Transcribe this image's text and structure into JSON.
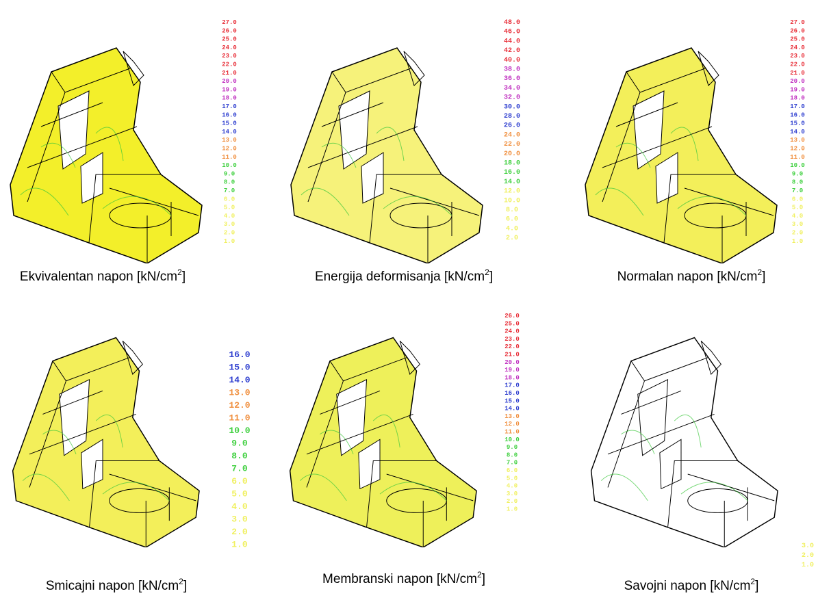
{
  "panels": [
    {
      "caption": {
        "text": "Ekvivalentan napon [kN/cm",
        "sup": "2",
        "close": "]"
      },
      "legend": [
        {
          "color": "#e8303a",
          "labels": [
            "27.0",
            "26.0",
            "25.0",
            "24.0",
            "23.0",
            "22.0",
            "21.0"
          ]
        },
        {
          "color": "#c030c0",
          "labels": [
            "20.0",
            "19.0",
            "18.0"
          ]
        },
        {
          "color": "#3040d0",
          "labels": [
            "17.0",
            "16.0",
            "15.0",
            "14.0"
          ]
        },
        {
          "color": "#f09040",
          "labels": [
            "13.0",
            "12.0",
            "11.0"
          ]
        },
        {
          "color": "#40d040",
          "labels": [
            "10.0",
            "9.0",
            "8.0",
            "7.0"
          ]
        },
        {
          "color": "#f0f060",
          "labels": [
            "6.0",
            "5.0",
            "4.0",
            "3.0",
            "2.0",
            "1.0"
          ]
        }
      ]
    },
    {
      "caption": {
        "text": "Energija deformisanja [kN/cm",
        "sup": "2",
        "close": "]"
      },
      "legend": [
        {
          "color": "#e8303a",
          "labels": [
            "48.0",
            "46.0",
            "44.0",
            "42.0",
            "40.0"
          ]
        },
        {
          "color": "#c030c0",
          "labels": [
            "38.0",
            "36.0",
            "34.0",
            "32.0"
          ]
        },
        {
          "color": "#3040d0",
          "labels": [
            "30.0",
            "28.0",
            "26.0"
          ]
        },
        {
          "color": "#f09040",
          "labels": [
            "24.0",
            "22.0",
            "20.0"
          ]
        },
        {
          "color": "#40d040",
          "labels": [
            "18.0",
            "16.0",
            "14.0"
          ]
        },
        {
          "color": "#f0f060",
          "labels": [
            "12.0",
            "10.0",
            "8.0",
            "6.0",
            "4.0",
            "2.0"
          ]
        }
      ]
    },
    {
      "caption": {
        "text": "Normalan napon [kN/cm",
        "sup": "2",
        "close": "]"
      },
      "legend": [
        {
          "color": "#e8303a",
          "labels": [
            "27.0",
            "26.0",
            "25.0",
            "24.0",
            "23.0",
            "22.0",
            "21.0"
          ]
        },
        {
          "color": "#c030c0",
          "labels": [
            "20.0",
            "19.0",
            "18.0"
          ]
        },
        {
          "color": "#3040d0",
          "labels": [
            "17.0",
            "16.0",
            "15.0",
            "14.0"
          ]
        },
        {
          "color": "#f09040",
          "labels": [
            "13.0",
            "12.0",
            "11.0"
          ]
        },
        {
          "color": "#40d040",
          "labels": [
            "10.0",
            "9.0",
            "8.0",
            "7.0"
          ]
        },
        {
          "color": "#f0f060",
          "labels": [
            "6.0",
            "5.0",
            "4.0",
            "3.0",
            "2.0",
            "1.0"
          ]
        }
      ]
    },
    {
      "caption": {
        "text": "Smicajni napon [kN/cm",
        "sup": "2",
        "close": "]"
      },
      "legend": [
        {
          "color": "#3040d0",
          "labels": [
            "16.0",
            "15.0",
            "14.0"
          ]
        },
        {
          "color": "#f09040",
          "labels": [
            "13.0",
            "12.0",
            "11.0"
          ]
        },
        {
          "color": "#40d040",
          "labels": [
            "10.0",
            "9.0",
            "8.0",
            "7.0"
          ]
        },
        {
          "color": "#f0f060",
          "labels": [
            "6.0",
            "5.0",
            "4.0",
            "3.0",
            "2.0",
            "1.0"
          ]
        }
      ]
    },
    {
      "caption": {
        "text": "Membranski napon [kN/cm",
        "sup": "2",
        "close": "]"
      },
      "legend": [
        {
          "color": "#e8303a",
          "labels": [
            "26.0",
            "25.0",
            "24.0",
            "23.0",
            "22.0",
            "21.0"
          ]
        },
        {
          "color": "#c030c0",
          "labels": [
            "20.0",
            "19.0",
            "18.0"
          ]
        },
        {
          "color": "#3040d0",
          "labels": [
            "17.0",
            "16.0",
            "15.0",
            "14.0"
          ]
        },
        {
          "color": "#f09040",
          "labels": [
            "13.0",
            "12.0",
            "11.0"
          ]
        },
        {
          "color": "#40d040",
          "labels": [
            "10.0",
            "9.0",
            "8.0",
            "7.0"
          ]
        },
        {
          "color": "#f0f060",
          "labels": [
            "6.0",
            "5.0",
            "4.0",
            "3.0",
            "2.0",
            "1.0"
          ]
        }
      ]
    },
    {
      "caption": {
        "text": "Savojni napon [kN/cm",
        "sup": "2",
        "close": "]"
      },
      "legend": [
        {
          "color": "#f0f060",
          "labels": [
            "3.0",
            "2.0",
            "1.0"
          ]
        }
      ]
    }
  ]
}
